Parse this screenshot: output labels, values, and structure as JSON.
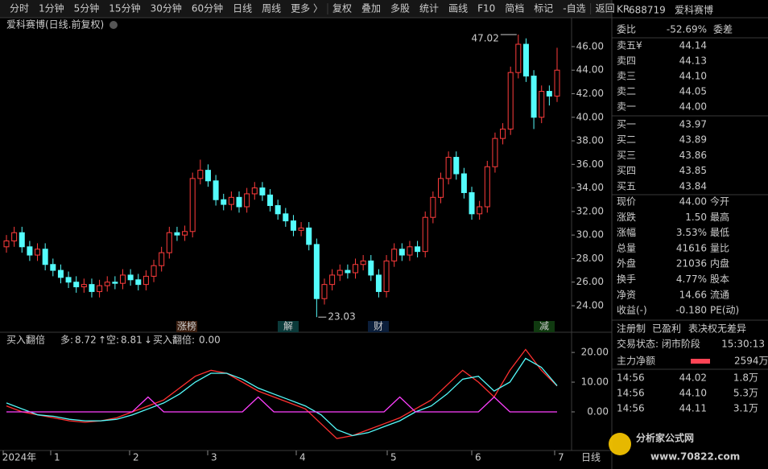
{
  "toolbar": {
    "items": [
      "分时",
      "1分钟",
      "5分钟",
      "15分钟",
      "30分钟",
      "60分钟",
      "日线",
      "周线",
      "更多 〉",
      "复权",
      "叠加",
      "多股",
      "统计",
      "画线",
      "F10",
      "简档",
      "标记",
      "-自选",
      "返回"
    ],
    "active_index": 6
  },
  "chart_data": {
    "type": "candlestick",
    "title": "爱科赛博(日线.前复权)",
    "ohlc": [
      [
        29.0,
        30.0,
        28.5,
        29.5
      ],
      [
        29.5,
        30.7,
        29.0,
        30.2
      ],
      [
        30.2,
        30.7,
        28.5,
        29.0
      ],
      [
        29.0,
        29.5,
        27.8,
        28.3
      ],
      [
        28.3,
        29.3,
        27.8,
        28.8
      ],
      [
        28.8,
        29.3,
        27.0,
        27.5
      ],
      [
        27.5,
        28.0,
        26.5,
        27.0
      ],
      [
        27.0,
        27.5,
        25.9,
        26.4
      ],
      [
        26.4,
        26.9,
        25.5,
        26.0
      ],
      [
        26.0,
        26.5,
        25.1,
        25.6
      ],
      [
        25.6,
        26.3,
        25.1,
        25.8
      ],
      [
        25.8,
        26.3,
        24.7,
        25.2
      ],
      [
        25.2,
        26.2,
        24.7,
        25.7
      ],
      [
        25.7,
        26.5,
        25.2,
        26.0
      ],
      [
        26.0,
        26.5,
        25.4,
        25.9
      ],
      [
        25.9,
        27.1,
        25.4,
        26.6
      ],
      [
        26.6,
        27.1,
        25.7,
        26.2
      ],
      [
        26.2,
        26.7,
        25.3,
        25.8
      ],
      [
        25.8,
        27.0,
        25.3,
        26.5
      ],
      [
        26.5,
        27.9,
        26.0,
        27.4
      ],
      [
        27.4,
        29.0,
        26.9,
        28.5
      ],
      [
        28.5,
        30.7,
        28.0,
        30.2
      ],
      [
        30.2,
        30.7,
        29.5,
        30.0
      ],
      [
        30.0,
        30.8,
        29.5,
        30.3
      ],
      [
        30.3,
        35.3,
        29.8,
        34.8
      ],
      [
        34.8,
        36.4,
        34.3,
        35.5
      ],
      [
        35.5,
        36.0,
        34.1,
        34.6
      ],
      [
        34.6,
        35.1,
        32.5,
        33.0
      ],
      [
        33.0,
        33.5,
        32.1,
        32.6
      ],
      [
        32.6,
        33.7,
        32.1,
        33.2
      ],
      [
        33.2,
        33.7,
        31.9,
        32.4
      ],
      [
        32.4,
        34.0,
        31.9,
        33.5
      ],
      [
        33.5,
        34.5,
        33.0,
        34.0
      ],
      [
        34.0,
        34.5,
        32.9,
        33.4
      ],
      [
        33.4,
        33.9,
        32.0,
        32.5
      ],
      [
        32.5,
        33.0,
        31.3,
        31.8
      ],
      [
        31.8,
        32.3,
        30.7,
        31.2
      ],
      [
        31.2,
        31.7,
        29.9,
        30.4
      ],
      [
        30.4,
        31.1,
        29.9,
        30.6
      ],
      [
        30.6,
        31.1,
        28.7,
        29.2
      ],
      [
        29.2,
        29.7,
        23.03,
        24.6
      ],
      [
        24.6,
        26.3,
        24.1,
        25.8
      ],
      [
        25.8,
        27.1,
        25.3,
        26.6
      ],
      [
        26.6,
        27.5,
        26.1,
        27.0
      ],
      [
        27.0,
        27.5,
        26.3,
        26.8
      ],
      [
        26.8,
        28.0,
        26.3,
        27.5
      ],
      [
        27.5,
        28.3,
        27.0,
        27.8
      ],
      [
        27.8,
        28.3,
        26.1,
        26.6
      ],
      [
        26.6,
        27.1,
        24.7,
        25.2
      ],
      [
        25.2,
        28.3,
        24.7,
        27.8
      ],
      [
        27.8,
        29.3,
        27.3,
        28.8
      ],
      [
        28.8,
        29.3,
        27.8,
        28.3
      ],
      [
        28.3,
        29.5,
        27.8,
        29.0
      ],
      [
        29.0,
        29.5,
        28.1,
        28.6
      ],
      [
        28.6,
        32.0,
        28.1,
        31.5
      ],
      [
        31.5,
        33.7,
        31.0,
        33.2
      ],
      [
        33.2,
        35.3,
        32.7,
        34.8
      ],
      [
        34.8,
        37.1,
        34.3,
        36.6
      ],
      [
        36.6,
        37.1,
        34.7,
        35.2
      ],
      [
        35.2,
        35.7,
        33.1,
        33.6
      ],
      [
        33.6,
        34.1,
        31.3,
        31.8
      ],
      [
        31.8,
        32.9,
        31.3,
        32.4
      ],
      [
        32.4,
        36.3,
        31.9,
        35.8
      ],
      [
        35.8,
        38.7,
        35.3,
        38.2
      ],
      [
        38.2,
        39.5,
        37.7,
        39.0
      ],
      [
        39.0,
        44.3,
        38.5,
        43.8
      ],
      [
        43.8,
        47.02,
        43.3,
        46.2
      ],
      [
        46.2,
        46.7,
        43.0,
        43.5
      ],
      [
        43.5,
        44.0,
        39.0,
        40.0
      ],
      [
        40.0,
        42.7,
        39.5,
        42.2
      ],
      [
        42.2,
        42.7,
        41.0,
        41.8
      ],
      [
        41.8,
        45.9,
        41.3,
        44.0
      ]
    ],
    "up_color": "#ff3c3c",
    "down_color": "#54fcfc",
    "ylim": [
      21.95,
      48.25
    ],
    "yticks": [
      {
        "value": 24,
        "label": "24.00"
      },
      {
        "value": 26,
        "label": "26.00"
      },
      {
        "value": 28,
        "label": "28.00"
      },
      {
        "value": 30,
        "label": "30.00"
      },
      {
        "value": 32,
        "label": "32.00"
      },
      {
        "value": 34,
        "label": "34.00"
      },
      {
        "value": 36,
        "label": "36.00"
      },
      {
        "value": 38,
        "label": "38.00"
      },
      {
        "value": 40,
        "label": "40.00"
      },
      {
        "value": 42,
        "label": "42.00"
      },
      {
        "value": 44,
        "label": "44.00"
      },
      {
        "value": 46,
        "label": "46.00"
      }
    ],
    "x_labels": [
      "2024年",
      "1",
      "2",
      "3",
      "4",
      "5",
      "6",
      "7"
    ],
    "period_label": "日线",
    "events": [
      "涨榜",
      "解",
      "财",
      "减"
    ]
  },
  "indicator": {
    "type": "line",
    "title": "买入翻倍",
    "ylim": [
      -13,
      24.9
    ],
    "yticks": [
      {
        "value": 0,
        "label": "0.00"
      },
      {
        "value": 10,
        "label": "10.00"
      },
      {
        "value": 20,
        "label": "20.00"
      }
    ],
    "series": [
      {
        "name": "多:",
        "trend": "↑",
        "color": "#ff3030",
        "values": [
          2,
          0,
          -1,
          -2,
          -3,
          -3.5,
          -3,
          -2,
          0,
          2,
          4,
          8,
          12,
          14,
          13,
          10,
          7,
          5,
          3,
          1,
          -4,
          -9,
          -8,
          -6,
          -4,
          -2,
          1,
          4,
          9,
          14,
          10,
          5,
          14,
          21,
          14,
          8.72
        ]
      },
      {
        "name": "空:",
        "trend": "↓",
        "color": "#54fcfc",
        "values": [
          3,
          1,
          -1,
          -1.5,
          -2.5,
          -3,
          -3,
          -2.5,
          -1,
          1,
          3,
          6,
          10,
          13,
          13,
          11,
          8,
          6,
          4,
          2,
          -1,
          -6,
          -8,
          -7,
          -5,
          -3,
          0,
          2,
          6,
          11,
          12,
          7,
          10,
          18,
          15,
          8.81
        ]
      },
      {
        "name": "买入翻倍:",
        "color": "#ff40ff",
        "current_label": "0.00",
        "values": [
          0,
          0,
          0,
          0,
          0,
          0,
          0,
          0,
          0,
          5,
          0,
          0,
          0,
          0,
          0,
          0,
          5,
          0,
          0,
          0,
          0,
          0,
          0,
          0,
          0,
          5,
          0,
          0,
          0,
          0,
          0,
          5,
          0,
          0,
          0,
          0
        ]
      }
    ]
  },
  "quote": {
    "market": "KR",
    "code": "688719",
    "name": "爱科赛博",
    "ratio": [
      "委比",
      "-52.69%",
      "委差"
    ],
    "book": [
      [
        "卖五¥",
        "44.14"
      ],
      [
        "卖四",
        "44.13"
      ],
      [
        "卖三",
        "44.10"
      ],
      [
        "卖二",
        "44.05"
      ],
      [
        "卖一",
        "44.00"
      ],
      [
        "买一",
        "43.97"
      ],
      [
        "买二",
        "43.89"
      ],
      [
        "买三",
        "43.86"
      ],
      [
        "买四",
        "43.85"
      ],
      [
        "买五",
        "43.84"
      ]
    ],
    "stats": [
      {
        "label": "现价",
        "value": "44.00",
        "right": "今开",
        "color": "#ff4444"
      },
      {
        "label": "涨跌",
        "value": "1.50",
        "right": "最高",
        "color": "#ff4444"
      },
      {
        "label": "涨幅",
        "value": "3.53%",
        "right": "最低",
        "color": "#ff4444"
      },
      {
        "label": "总量",
        "value": "41616",
        "right": "量比",
        "color": "#ffcc33"
      },
      {
        "label": "外盘",
        "value": "21036",
        "right": "内盘",
        "color": "#ff4444"
      },
      {
        "label": "换手",
        "value": "4.77%",
        "right": "股本",
        "color": "#dddddd"
      },
      {
        "label": "净资",
        "value": "14.66",
        "right": "流通",
        "color": "#dddddd"
      },
      {
        "label": "收益(-)",
        "value": "-0.180",
        "right": "PE(动)",
        "color": "#dddddd"
      }
    ],
    "tags": [
      "注册制",
      "已盈利",
      "表决权无差异"
    ],
    "status": [
      "交易状态: 闭市阶段",
      "15:30:13"
    ],
    "main_net": [
      "主力净额",
      "2594万"
    ],
    "ticks": [
      [
        "14:56",
        "44.02",
        "1.8万"
      ],
      [
        "14:56",
        "44.10",
        "5.3万"
      ],
      [
        "14:56",
        "44.11",
        "3.1万"
      ]
    ]
  },
  "watermark": {
    "title": "分析家公式网",
    "url": "www.70822.com"
  }
}
